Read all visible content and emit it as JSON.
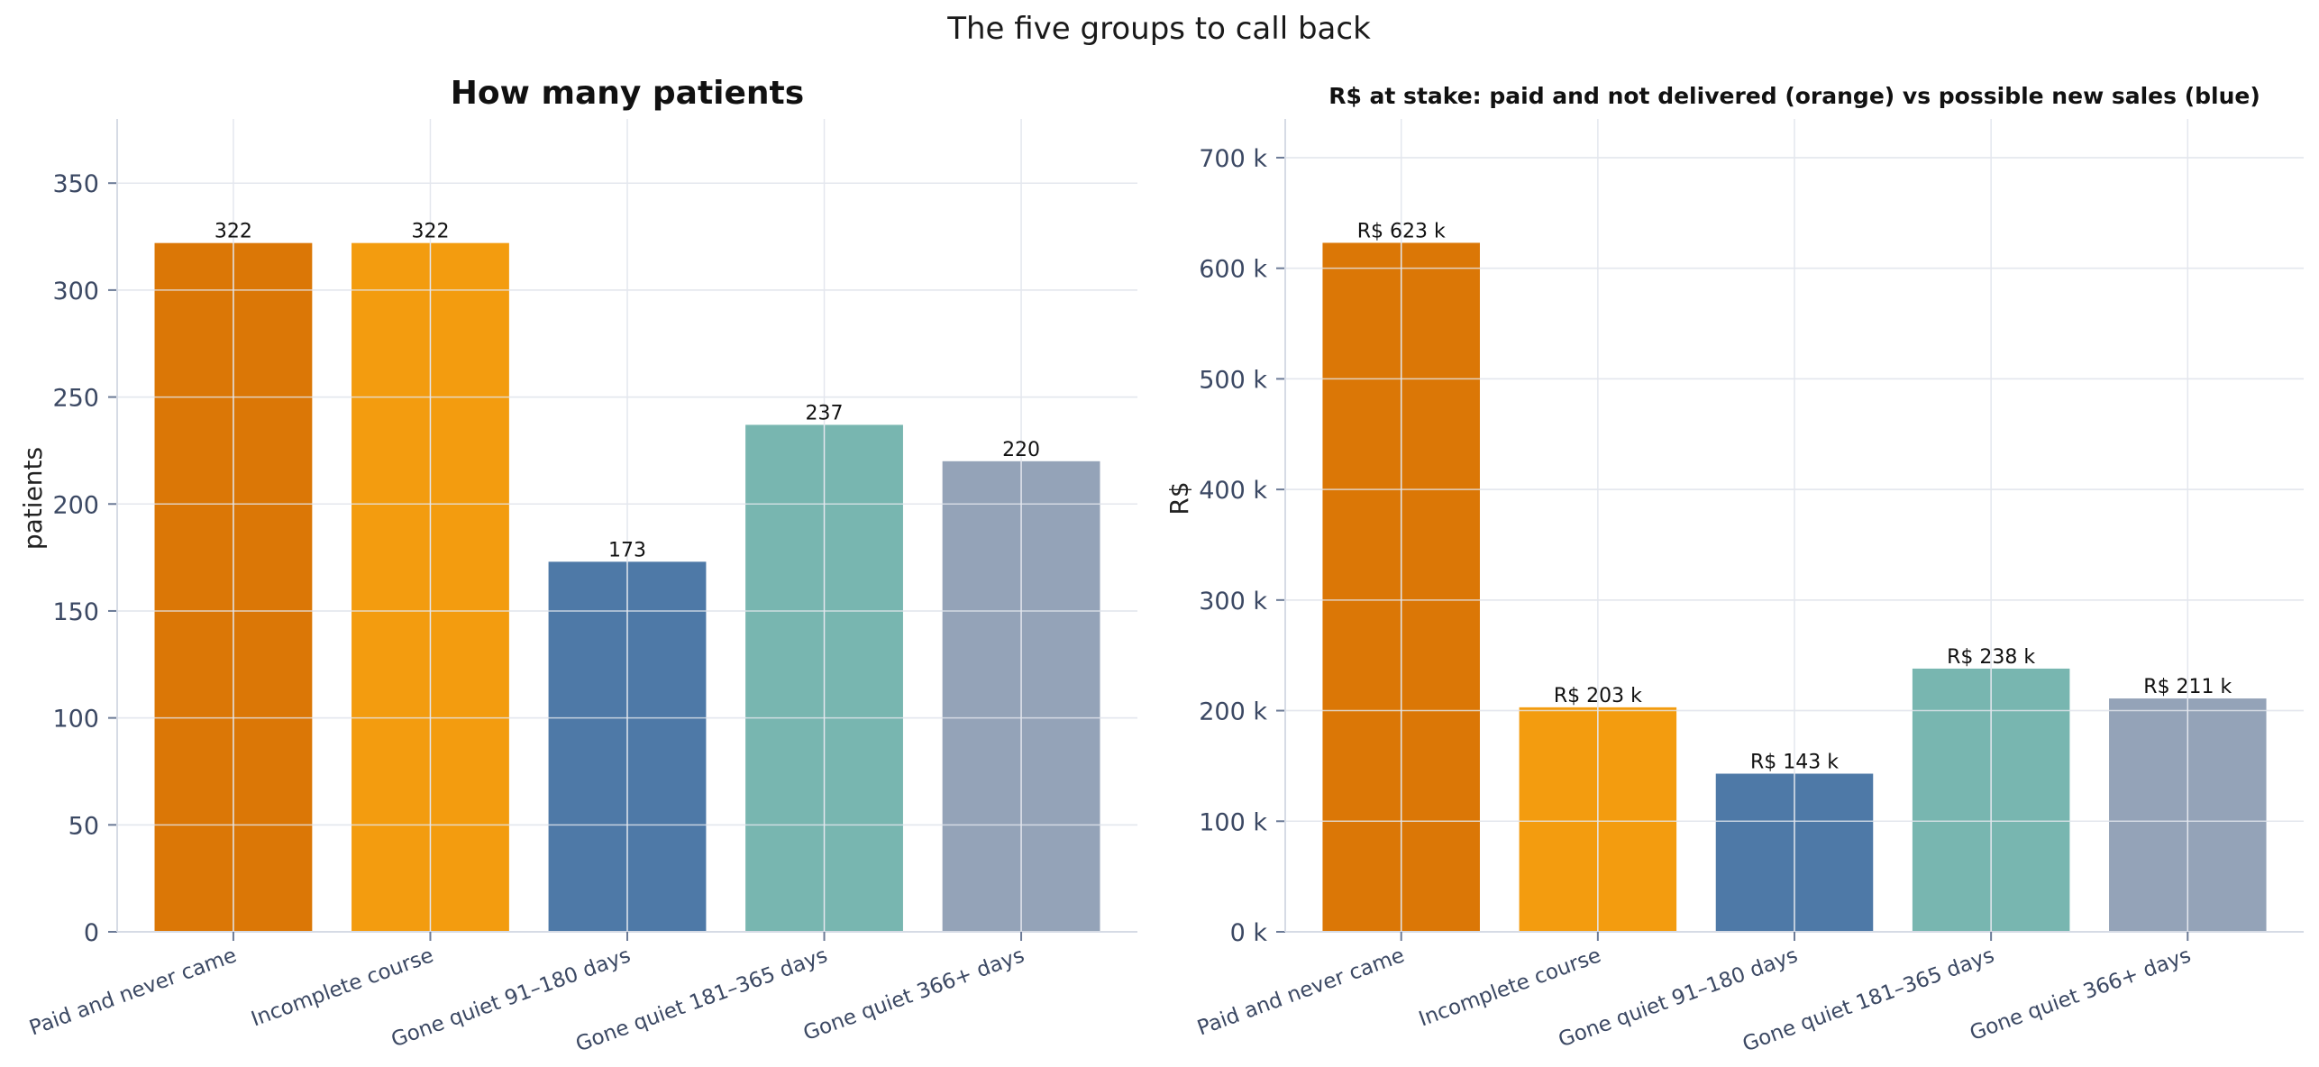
{
  "figure_title": "The five groups to call back",
  "chart_data": [
    {
      "type": "bar",
      "title": "How many patients",
      "xlabel": "",
      "ylabel": "patients",
      "categories": [
        "Paid and never came",
        "Incomplete course",
        "Gone quiet 91–180 days",
        "Gone quiet 181–365 days",
        "Gone quiet 366+ days"
      ],
      "values": [
        322,
        322,
        173,
        237,
        220
      ],
      "data_labels": [
        "322",
        "322",
        "173",
        "237",
        "220"
      ],
      "colors": [
        "#db7706",
        "#f39c0f",
        "#4e79a7",
        "#78b6b0",
        "#94a3b8"
      ],
      "ylim": [
        0,
        380
      ],
      "yticks": [
        0,
        50,
        100,
        150,
        200,
        250,
        300,
        350
      ],
      "ytick_labels": [
        "0",
        "50",
        "100",
        "150",
        "200",
        "250",
        "300",
        "350"
      ],
      "grid": true
    },
    {
      "type": "bar",
      "title": "R$ at stake: paid and not delivered (orange) vs possible new sales (blue)",
      "xlabel": "",
      "ylabel": "R$",
      "categories": [
        "Paid and never came",
        "Incomplete course",
        "Gone quiet 91–180 days",
        "Gone quiet 181–365 days",
        "Gone quiet 366+ days"
      ],
      "values": [
        623000,
        203000,
        143000,
        238000,
        211000
      ],
      "data_labels": [
        "R$ 623 k",
        "R$ 203 k",
        "R$ 143 k",
        "R$ 238 k",
        "R$ 211 k"
      ],
      "colors": [
        "#db7706",
        "#f39c0f",
        "#4e79a7",
        "#78b6b0",
        "#94a3b8"
      ],
      "ylim": [
        0,
        735000
      ],
      "yticks": [
        0,
        100000,
        200000,
        300000,
        400000,
        500000,
        600000,
        700000
      ],
      "ytick_labels": [
        "0 k",
        "100 k",
        "200 k",
        "300 k",
        "400 k",
        "500 k",
        "600 k",
        "700 k"
      ],
      "grid": true
    }
  ]
}
